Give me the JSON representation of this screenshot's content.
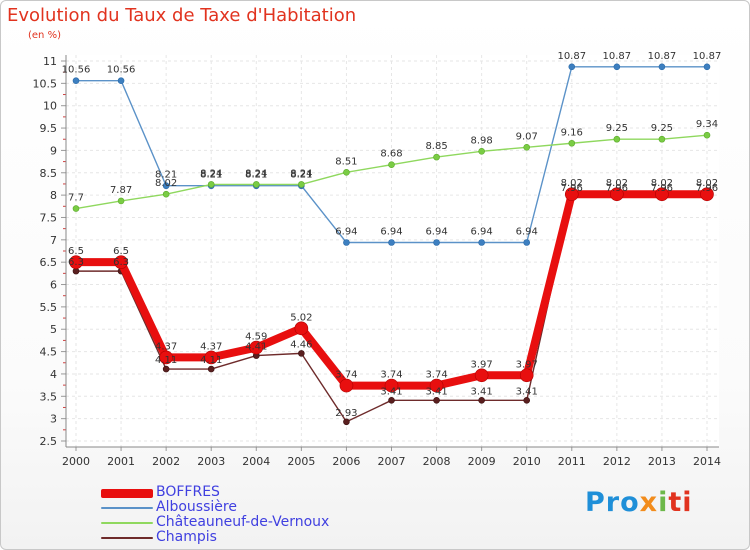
{
  "title": "Evolution du Taux de Taxe d'Habitation",
  "subtitle": "(en %)",
  "logo": {
    "part1": "Pro",
    "part2": "x",
    "part3": "i",
    "part4": "ti"
  },
  "chart_data": {
    "type": "line",
    "x": [
      "2000",
      "2001",
      "2002",
      "2003",
      "2004",
      "2005",
      "2006",
      "2007",
      "2008",
      "2009",
      "2010",
      "2011",
      "2012",
      "2013",
      "2014"
    ],
    "ylim": [
      2.5,
      11
    ],
    "yticks": [
      "2.5",
      "3",
      "3.5",
      "4",
      "4.5",
      "5",
      "5.5",
      "6",
      "6.5",
      "7",
      "7.5",
      "8",
      "8.5",
      "9",
      "9.5",
      "10",
      "10.5",
      "11"
    ],
    "grid": true,
    "legend_position": "bottom-left",
    "series": [
      {
        "name": "BOFFRES",
        "color": "#e80f0f",
        "values": [
          6.5,
          6.5,
          4.37,
          4.37,
          4.59,
          5.02,
          3.74,
          3.74,
          3.74,
          3.97,
          3.97,
          8.02,
          8.02,
          8.02,
          8.02
        ],
        "labels": [
          "6.5",
          "6.5",
          "4.37",
          "4.37",
          "4.59",
          "5.02",
          "3.74",
          "3.74",
          "3.74",
          "3.97",
          "3.97",
          "8.02",
          "8.02",
          "8.02",
          "8.02"
        ]
      },
      {
        "name": "Alboussière",
        "color": "#5b92c8",
        "values": [
          10.56,
          10.56,
          8.21,
          8.21,
          8.21,
          8.21,
          6.94,
          6.94,
          6.94,
          6.94,
          6.94,
          10.87,
          10.87,
          10.87,
          10.87
        ],
        "labels": [
          "10.56",
          "10.56",
          "8.21",
          "8.21",
          "8.21",
          "8.21",
          "6.94",
          "6.94",
          "6.94",
          "6.94",
          "6.94",
          "10.87",
          "10.87",
          "10.87",
          "10.87"
        ]
      },
      {
        "name": "Châteauneuf-de-Vernoux",
        "color": "#8fd85e",
        "values": [
          7.7,
          7.87,
          8.02,
          8.24,
          8.24,
          8.24,
          8.51,
          8.68,
          8.85,
          8.98,
          9.07,
          9.16,
          9.25,
          9.25,
          9.34
        ],
        "labels": [
          "7.7",
          "7.87",
          "8.02",
          "8.24",
          "8.24",
          "8.24",
          "8.51",
          "8.68",
          "8.85",
          "8.98",
          "9.07",
          "9.16",
          "9.25",
          "9.25",
          "9.34"
        ]
      },
      {
        "name": "Champis",
        "color": "#6e2b2b",
        "values": [
          6.3,
          6.3,
          4.11,
          4.11,
          4.41,
          4.46,
          2.93,
          3.41,
          3.41,
          3.41,
          3.41,
          7.96,
          7.96,
          7.96,
          7.96
        ],
        "labels": [
          "6.3",
          "6.3",
          "4.11",
          "4.11",
          "4.41",
          "4.46",
          "2.93",
          "3.41",
          "3.41",
          "3.41",
          "3.41",
          "7.96",
          "7.96",
          "7.96",
          "7.96"
        ]
      }
    ]
  }
}
